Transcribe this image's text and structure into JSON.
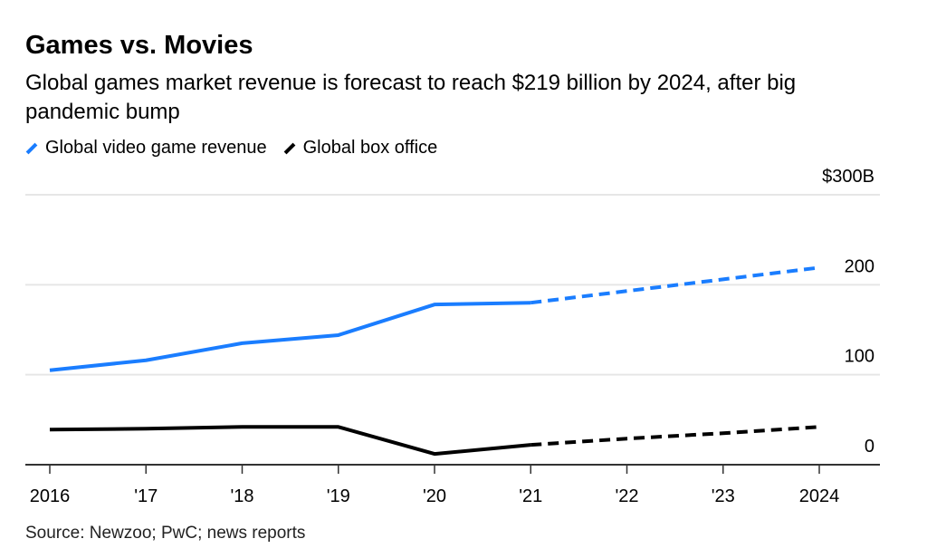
{
  "title": "Games vs. Movies",
  "subtitle": "Global games market revenue is forecast to reach $219 billion by 2024, after big pandemic bump",
  "source": "Source: Newzoo; PwC; news reports",
  "chart_data": {
    "type": "line",
    "title": "Games vs. Movies",
    "x": [
      2016,
      2017,
      2018,
      2019,
      2020,
      2021,
      2022,
      2023,
      2024
    ],
    "x_tick_labels": [
      "2016",
      "'17",
      "'18",
      "'19",
      "'20",
      "'21",
      "'22",
      "'23",
      "2024"
    ],
    "y_tick_labels": [
      "0",
      "100",
      "200",
      "$300B"
    ],
    "y_ticks": [
      0,
      100,
      200,
      300
    ],
    "ylim": [
      0,
      300
    ],
    "ylabel": "",
    "xlabel": "",
    "grid": true,
    "legend_placement": "top-left",
    "forecast_from": 2021,
    "series": [
      {
        "name": "Global video game revenue",
        "color": "#1a7dff",
        "values": [
          105,
          116,
          135,
          144,
          178,
          180,
          193,
          206,
          219
        ]
      },
      {
        "name": "Global box office",
        "color": "#000000",
        "values": [
          39,
          40,
          42,
          42,
          12,
          22,
          29,
          35,
          42
        ]
      }
    ]
  }
}
